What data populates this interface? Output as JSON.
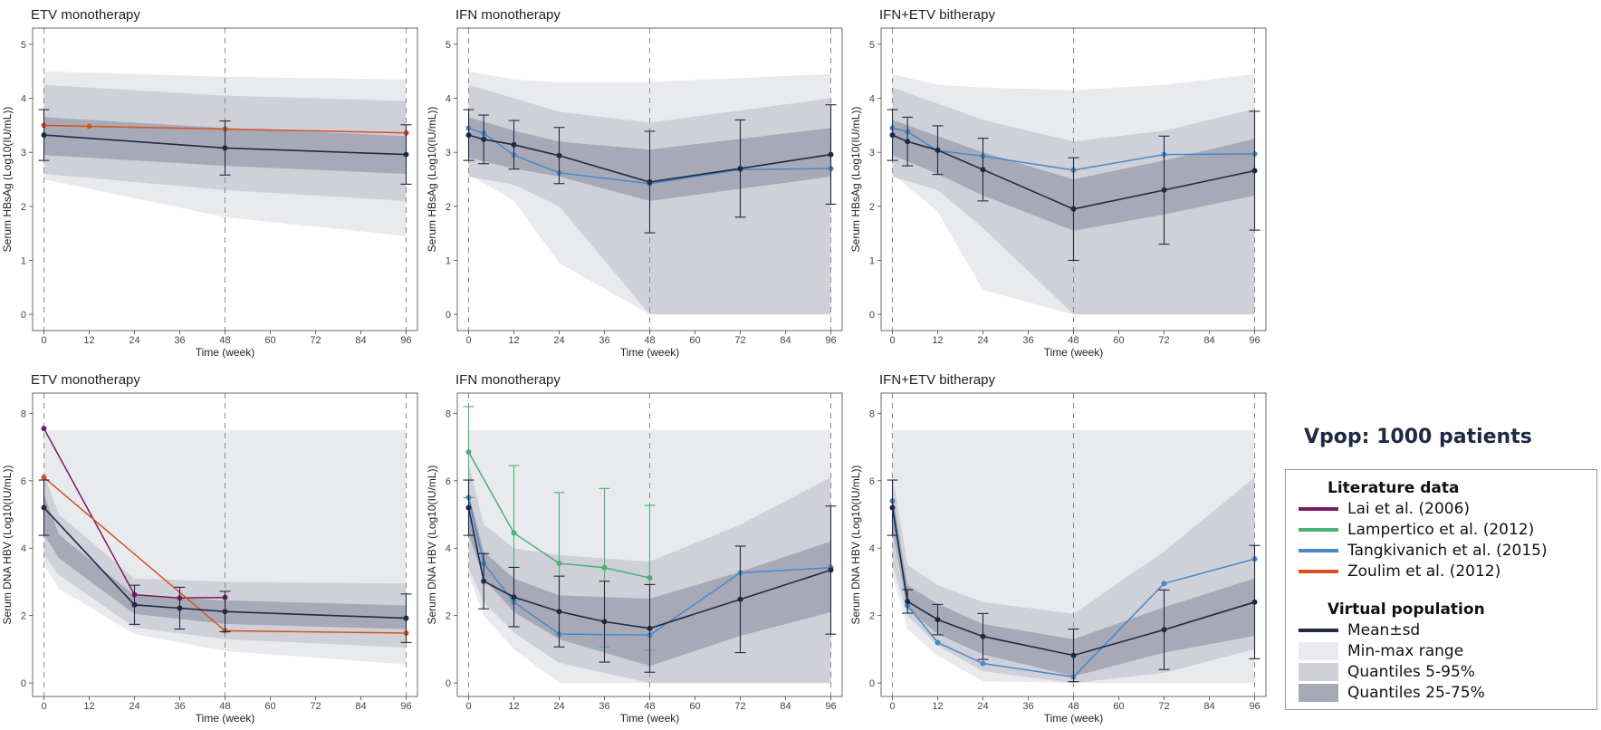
{
  "chart_data": [
    {
      "type": "line",
      "title": "ETV monotherapy",
      "xlabel": "Time (week)",
      "ylabel": "Serum HBsAg (Log10(IU/mL))",
      "xlim": [
        -3,
        99
      ],
      "ylim": [
        -0.3,
        5.3
      ],
      "xticks": [
        0,
        12,
        24,
        36,
        48,
        60,
        72,
        84,
        96
      ],
      "yticks": [
        0,
        1,
        2,
        3,
        4,
        5
      ],
      "vlines": [
        0,
        48,
        96
      ],
      "bands": {
        "x": [
          0,
          48,
          96
        ],
        "minmax": {
          "lo": [
            2.5,
            1.8,
            1.45
          ],
          "hi": [
            4.5,
            4.4,
            4.35
          ]
        },
        "q5_95": {
          "lo": [
            2.6,
            2.3,
            2.1
          ],
          "hi": [
            4.25,
            4.05,
            3.95
          ]
        },
        "q25_75": {
          "lo": [
            2.95,
            2.75,
            2.6
          ],
          "hi": [
            3.65,
            3.45,
            3.3
          ]
        }
      },
      "mean": {
        "x": [
          0,
          48,
          96
        ],
        "y": [
          3.32,
          3.08,
          2.96
        ],
        "sd": [
          0.47,
          0.5,
          0.55
        ]
      },
      "series": [
        {
          "name": "Zoulim et al. (2012)",
          "color": "#d4531f",
          "x": [
            0,
            12,
            48,
            96
          ],
          "y": [
            3.5,
            3.48,
            3.43,
            3.36
          ]
        }
      ]
    },
    {
      "type": "line",
      "title": "IFN monotherapy",
      "xlabel": "Time (week)",
      "ylabel": "Serum HBsAg (Log10(IU/mL))",
      "xlim": [
        -3,
        99
      ],
      "ylim": [
        -0.3,
        5.3
      ],
      "xticks": [
        0,
        12,
        24,
        36,
        48,
        60,
        72,
        84,
        96
      ],
      "yticks": [
        0,
        1,
        2,
        3,
        4,
        5
      ],
      "vlines": [
        0,
        48,
        96
      ],
      "bands": {
        "x": [
          0,
          12,
          24,
          48,
          96
        ],
        "minmax": {
          "lo": [
            2.6,
            2.1,
            0.95,
            0.0,
            0.0
          ],
          "hi": [
            4.5,
            4.35,
            4.3,
            4.3,
            4.45
          ]
        },
        "q5_95": {
          "lo": [
            2.55,
            2.4,
            2.0,
            0.0,
            0.0
          ],
          "hi": [
            4.25,
            4.0,
            3.75,
            3.55,
            4.0
          ]
        },
        "q25_75": {
          "lo": [
            2.9,
            2.7,
            2.55,
            2.1,
            2.55
          ],
          "hi": [
            3.65,
            3.4,
            3.2,
            3.05,
            3.45
          ]
        }
      },
      "mean": {
        "x": [
          0,
          4,
          12,
          24,
          48,
          72,
          96
        ],
        "y": [
          3.32,
          3.24,
          3.14,
          2.94,
          2.45,
          2.7,
          2.96
        ],
        "sd": [
          0.47,
          0.45,
          0.45,
          0.52,
          0.94,
          0.9,
          0.92
        ]
      },
      "series": [
        {
          "name": "Tangkivanich et al. (2015)",
          "color": "#4a88c7",
          "x": [
            0,
            4,
            12,
            24,
            48,
            72,
            96
          ],
          "y": [
            3.45,
            3.35,
            2.95,
            2.62,
            2.42,
            2.68,
            2.7
          ]
        }
      ]
    },
    {
      "type": "line",
      "title": "IFN+ETV bitherapy",
      "xlabel": "Time (week)",
      "ylabel": "Serum HBsAg (Log10(IU/mL))",
      "xlim": [
        -3,
        99
      ],
      "ylim": [
        -0.3,
        5.3
      ],
      "xticks": [
        0,
        12,
        24,
        36,
        48,
        60,
        72,
        84,
        96
      ],
      "yticks": [
        0,
        1,
        2,
        3,
        4,
        5
      ],
      "vlines": [
        0,
        48,
        96
      ],
      "bands": {
        "x": [
          0,
          12,
          24,
          48,
          72,
          96
        ],
        "minmax": {
          "lo": [
            2.6,
            1.9,
            0.45,
            0.0,
            0.0,
            0.0
          ],
          "hi": [
            4.45,
            4.25,
            4.2,
            4.15,
            4.25,
            4.45
          ]
        },
        "q5_95": {
          "lo": [
            2.55,
            2.3,
            1.6,
            0.0,
            0.0,
            0.0
          ],
          "hi": [
            4.2,
            3.9,
            3.6,
            3.2,
            3.4,
            3.8
          ]
        },
        "q25_75": {
          "lo": [
            2.95,
            2.6,
            2.2,
            1.55,
            1.85,
            2.2
          ],
          "hi": [
            3.6,
            3.3,
            3.0,
            2.5,
            2.85,
            3.25
          ]
        }
      },
      "mean": {
        "x": [
          0,
          4,
          12,
          24,
          48,
          72,
          96
        ],
        "y": [
          3.32,
          3.2,
          3.04,
          2.68,
          1.95,
          2.3,
          2.66
        ],
        "sd": [
          0.47,
          0.45,
          0.45,
          0.58,
          0.95,
          1.0,
          1.1
        ]
      },
      "series": [
        {
          "name": "Tangkivanich et al. (2015)",
          "color": "#4a88c7",
          "x": [
            0,
            4,
            12,
            24,
            48,
            72,
            96
          ],
          "y": [
            3.45,
            3.38,
            3.03,
            2.93,
            2.67,
            2.96,
            2.97
          ]
        }
      ]
    },
    {
      "type": "line",
      "title": "ETV monotherapy",
      "xlabel": "Time (week)",
      "ylabel": "Serum DNA HBV (Log10(IU/mL))",
      "xlim": [
        -3,
        99
      ],
      "ylim": [
        -0.4,
        8.6
      ],
      "xticks": [
        0,
        12,
        24,
        36,
        48,
        60,
        72,
        84,
        96
      ],
      "yticks": [
        0,
        2,
        4,
        6,
        8
      ],
      "vlines": [
        0,
        48,
        96
      ],
      "bands": {
        "x": [
          0,
          4,
          24,
          48,
          96
        ],
        "minmax": {
          "lo": [
            3.5,
            2.8,
            1.45,
            0.95,
            0.55
          ],
          "hi": [
            7.5,
            7.5,
            7.5,
            7.5,
            7.5
          ]
        },
        "q5_95": {
          "lo": [
            3.8,
            3.2,
            1.65,
            1.3,
            1.05
          ],
          "hi": [
            6.2,
            5.0,
            3.1,
            3.0,
            2.95
          ]
        },
        "q25_75": {
          "lo": [
            4.4,
            3.7,
            2.05,
            1.75,
            1.6
          ],
          "hi": [
            5.6,
            4.4,
            2.6,
            2.45,
            2.3
          ]
        }
      },
      "mean": {
        "x": [
          0,
          24,
          36,
          48,
          96
        ],
        "y": [
          5.2,
          2.32,
          2.22,
          2.12,
          1.92
        ],
        "sd": [
          0.82,
          0.58,
          0.62,
          0.6,
          0.72
        ]
      },
      "series": [
        {
          "name": "Lai et al. (2006)",
          "color": "#7b1a63",
          "x": [
            0,
            24,
            36,
            48
          ],
          "y": [
            7.55,
            2.62,
            2.52,
            2.54
          ]
        },
        {
          "name": "Zoulim et al. (2012)",
          "color": "#d4531f",
          "x": [
            0,
            48,
            96
          ],
          "y": [
            6.1,
            1.55,
            1.48
          ]
        }
      ]
    },
    {
      "type": "line",
      "title": "IFN monotherapy",
      "xlabel": "Time (week)",
      "ylabel": "Serum DNA HBV (Log10(IU/mL))",
      "xlim": [
        -3,
        99
      ],
      "ylim": [
        -0.4,
        8.6
      ],
      "xticks": [
        0,
        12,
        24,
        36,
        48,
        60,
        72,
        84,
        96
      ],
      "yticks": [
        0,
        2,
        4,
        6,
        8
      ],
      "vlines": [
        0,
        48,
        96
      ],
      "bands": {
        "x": [
          0,
          4,
          12,
          24,
          48,
          72,
          96
        ],
        "minmax": {
          "lo": [
            3.2,
            2.0,
            1.0,
            0.0,
            0.0,
            0.0,
            0.0
          ],
          "hi": [
            7.5,
            7.5,
            7.5,
            7.5,
            7.5,
            7.5,
            7.5
          ]
        },
        "q5_95": {
          "lo": [
            3.4,
            2.4,
            1.5,
            0.6,
            0.0,
            0.0,
            0.0
          ],
          "hi": [
            6.5,
            4.7,
            4.0,
            3.8,
            3.6,
            4.7,
            6.1
          ]
        },
        "q25_75": {
          "lo": [
            4.4,
            3.1,
            2.1,
            1.3,
            0.5,
            1.4,
            2.1
          ],
          "hi": [
            5.6,
            3.9,
            3.1,
            2.6,
            2.5,
            3.3,
            4.2
          ]
        }
      },
      "mean": {
        "x": [
          0,
          4,
          12,
          24,
          36,
          48,
          72,
          96
        ],
        "y": [
          5.2,
          3.02,
          2.55,
          2.12,
          1.82,
          1.62,
          2.48,
          3.35
        ],
        "sd": [
          0.82,
          0.82,
          0.88,
          1.05,
          1.2,
          1.3,
          1.58,
          1.9
        ]
      },
      "series": [
        {
          "name": "Lampertico et al. (2012)",
          "color": "#4caf7a",
          "x": [
            0,
            12,
            24,
            36,
            48
          ],
          "y": [
            6.85,
            4.45,
            3.55,
            3.42,
            3.12
          ],
          "sd": [
            1.35,
            2.0,
            2.1,
            2.35,
            2.15
          ]
        },
        {
          "name": "Tangkivanich et al. (2015)",
          "color": "#4a88c7",
          "x": [
            0,
            4,
            12,
            24,
            48,
            72,
            96
          ],
          "y": [
            5.5,
            3.55,
            2.4,
            1.45,
            1.42,
            3.27,
            3.42
          ]
        }
      ]
    },
    {
      "type": "line",
      "title": "IFN+ETV bitherapy",
      "xlabel": "Time (week)",
      "ylabel": "Serum DNA HBV (Log10(IU/mL))",
      "xlim": [
        -3,
        99
      ],
      "ylim": [
        -0.4,
        8.6
      ],
      "xticks": [
        0,
        12,
        24,
        36,
        48,
        60,
        72,
        84,
        96
      ],
      "yticks": [
        0,
        2,
        4,
        6,
        8
      ],
      "vlines": [
        0,
        48,
        96
      ],
      "bands": {
        "x": [
          0,
          4,
          12,
          24,
          48,
          72,
          96
        ],
        "minmax": {
          "lo": [
            3.2,
            1.6,
            0.8,
            0.05,
            0.0,
            0.0,
            0.0
          ],
          "hi": [
            7.5,
            7.5,
            7.5,
            7.5,
            7.5,
            7.5,
            7.5
          ]
        },
        "q5_95": {
          "lo": [
            3.5,
            2.0,
            1.1,
            0.35,
            0.0,
            0.3,
            1.0
          ],
          "hi": [
            6.2,
            3.5,
            2.9,
            2.4,
            2.05,
            3.9,
            6.1
          ]
        },
        "q25_75": {
          "lo": [
            4.5,
            2.2,
            1.45,
            0.85,
            0.2,
            0.9,
            1.4
          ],
          "hi": [
            5.6,
            2.9,
            2.35,
            1.75,
            1.3,
            2.25,
            3.1
          ]
        }
      },
      "mean": {
        "x": [
          0,
          4,
          12,
          24,
          48,
          72,
          96
        ],
        "y": [
          5.2,
          2.42,
          1.88,
          1.38,
          0.82,
          1.58,
          2.4
        ],
        "sd": [
          0.82,
          0.35,
          0.45,
          0.68,
          0.78,
          1.18,
          1.68
        ]
      },
      "series": [
        {
          "name": "Tangkivanich et al. (2015)",
          "color": "#4a88c7",
          "x": [
            0,
            4,
            12,
            24,
            48,
            72,
            96
          ],
          "y": [
            5.4,
            2.3,
            1.2,
            0.58,
            0.18,
            2.95,
            3.68
          ]
        }
      ]
    }
  ],
  "legend": {
    "vpop_title": "Vpop: 1000 patients",
    "literature_header": "Literature data",
    "literature": [
      {
        "label": "Lai et al. (2006)",
        "color": "#7b1a63"
      },
      {
        "label": "Lampertico et al. (2012)",
        "color": "#4caf7a"
      },
      {
        "label": "Tangkivanich et al. (2015)",
        "color": "#4a88c7"
      },
      {
        "label": "Zoulim et al. (2012)",
        "color": "#d4531f"
      }
    ],
    "virtual_header": "Virtual population",
    "virtual": [
      {
        "label": "Mean±sd",
        "kind": "line",
        "color": "#1e2a44"
      },
      {
        "label": "Min-max range",
        "kind": "box",
        "color": "#e9eaee"
      },
      {
        "label": "Quantiles 5-95%",
        "kind": "box",
        "color": "#cfd0d8"
      },
      {
        "label": "Quantiles 25-75%",
        "kind": "box",
        "color": "#a8a9b7"
      }
    ]
  },
  "colors": {
    "mean": "#1e2a44",
    "minmax": "#e9eaee",
    "q5_95": "#cfd0d8",
    "q25_75": "#a8a9b7"
  }
}
